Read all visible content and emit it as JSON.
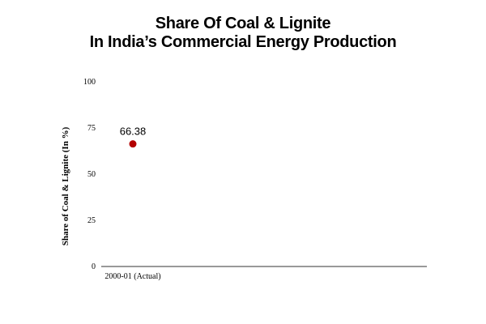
{
  "chart_data": {
    "type": "scatter",
    "title": [
      "Share Of Coal & Lignite",
      "In India’s Commercial Energy Production"
    ],
    "ylabel": "Share of Coal & Lignite (In %)",
    "xlabel": "",
    "categories": [
      "2000-01 (Actual)"
    ],
    "values": [
      66.38
    ],
    "data_labels": [
      "66.38"
    ],
    "ylim": [
      0,
      100
    ],
    "yticks": [
      "0",
      "25",
      "50",
      "75",
      "100"
    ],
    "grid": false,
    "colors": {
      "point": "#b30000",
      "axis": "#333333"
    }
  }
}
